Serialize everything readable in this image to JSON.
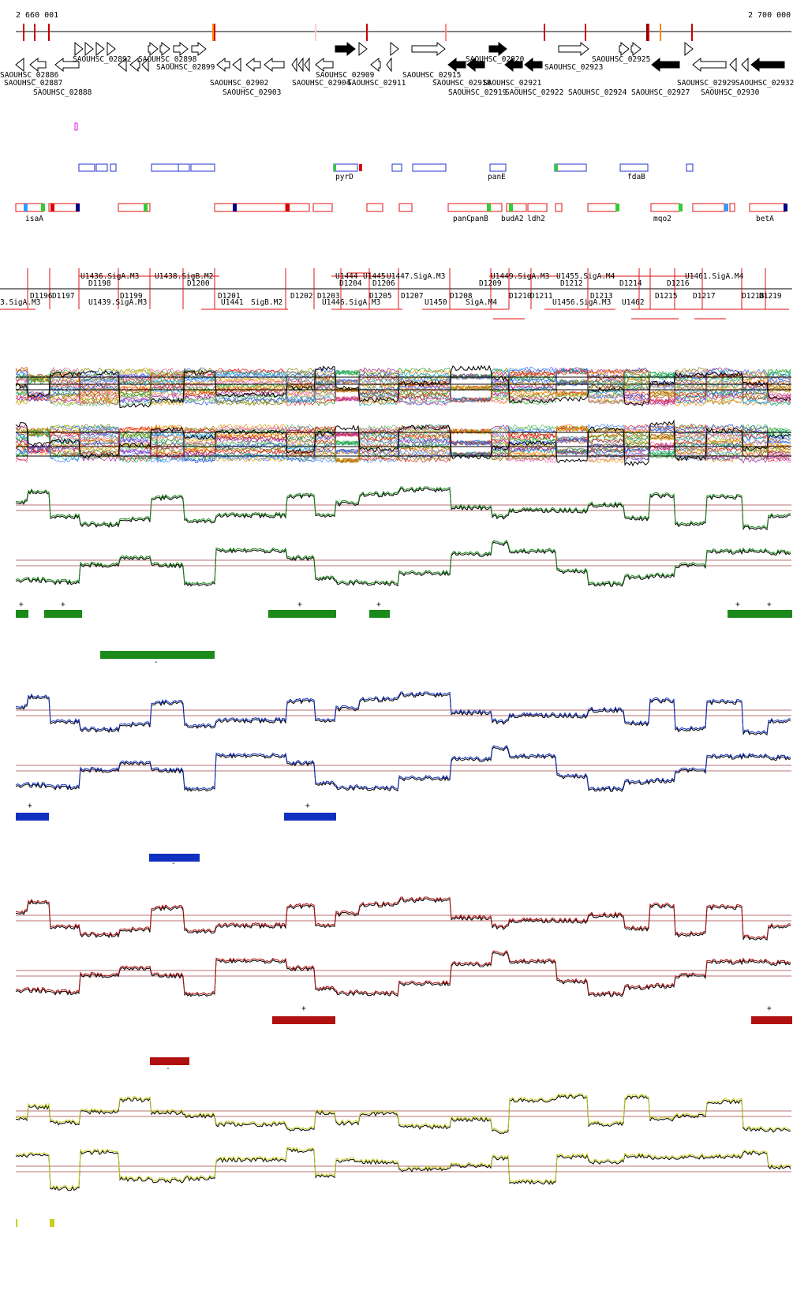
{
  "coords": {
    "start": "2 660 001",
    "end": "2 700 000"
  },
  "gene_labels_top": [
    "SAOUHSC_02892",
    "SAOUHSC_02898",
    "SAOUHSC_02899",
    "SAOUHSC_02920",
    "SAOUHSC_02923",
    "SAOUHSC_02925",
    "SAOUHSC_02915"
  ],
  "gene_labels_bottom": [
    "SAOUHSC_02886",
    "SAOUHSC_02887",
    "SAOUHSC_02888",
    "SAOUHSC_02902",
    "SAOUHSC_02903",
    "SAOUHSC_02904",
    "SAOUHSC_02909",
    "SAOUHSC_02911",
    "SAOUHSC_02918",
    "SAOUHSC_02919",
    "SAOUHSC_02921",
    "SAOUHSC_02922",
    "SAOUHSC_02924",
    "SAOUHSC_02927",
    "SAOUHSC_02929",
    "SAOUHSC_02930",
    "SAOUHSC_02932"
  ],
  "annot_blue_labels": [
    "pyrD",
    "panE",
    "fdaB"
  ],
  "annot_red_labels": [
    "isaA",
    "panC",
    "panB",
    "budA2",
    "ldh2",
    "mqo2",
    "betA"
  ],
  "segment_labels_upper": [
    "U1436.SigA.M3",
    "U1438.SigB.M2",
    "D1198",
    "D1200",
    "U1444",
    "U1445",
    "U1447.SigA.M3",
    "D1204",
    "D1206",
    "U1449.SigA.M3",
    "U1455.SigA.M4",
    "D1209",
    "D1212",
    "D1214",
    "D1216",
    "U1461.SigA.M4"
  ],
  "segment_labels_lower": [
    "3.SigA.M3",
    "D1196",
    "D1197",
    "D1199",
    "U1439.SigA.M3",
    "D1201",
    "U1441",
    "SigB.M2",
    "D1202",
    "D1203",
    "U1446.SigA.M3",
    "D1205",
    "D1207",
    "D1208",
    "U1450",
    "SigA.M4",
    "D1210",
    "D1211",
    "U1456.SigA.M3",
    "D1213",
    "U1462",
    "D1215",
    "D1217",
    "D1218",
    "D1219"
  ],
  "tracks": [
    {
      "name": "green",
      "color": "#1a8a1a"
    },
    {
      "name": "blue",
      "color": "#1030c0"
    },
    {
      "name": "red",
      "color": "#b01010"
    },
    {
      "name": "yellow",
      "color": "#c8d020"
    }
  ],
  "strand_marks": {
    "plus": "+",
    "minus": "-"
  }
}
